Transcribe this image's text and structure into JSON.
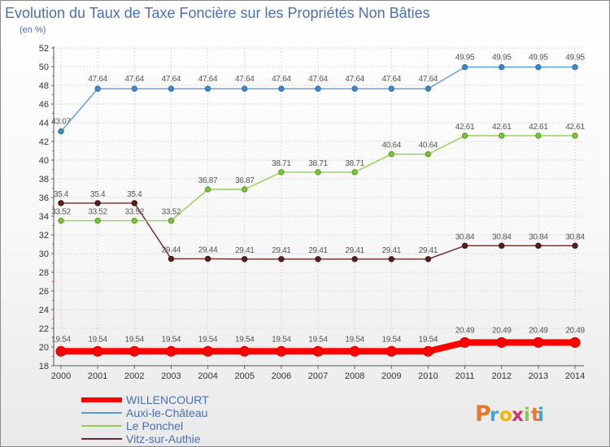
{
  "chart_data": {
    "type": "line",
    "title": "Evolution du Taux de Taxe Foncière sur les Propriétés Non Bâties",
    "ylabel": "(en %)",
    "xlabel": "",
    "categories": [
      "2000",
      "2001",
      "2002",
      "2003",
      "2004",
      "2005",
      "2006",
      "2007",
      "2008",
      "2009",
      "2010",
      "2011",
      "2012",
      "2013",
      "2014"
    ],
    "ylim": [
      18,
      52
    ],
    "yticks": [
      18,
      20,
      22,
      24,
      26,
      28,
      30,
      32,
      34,
      36,
      38,
      40,
      42,
      44,
      46,
      48,
      50,
      52
    ],
    "grid": true,
    "legend_position": "bottom-left",
    "series": [
      {
        "name": "WILLENCOURT",
        "color": "#ff0000",
        "values": [
          19.54,
          19.54,
          19.54,
          19.54,
          19.54,
          19.54,
          19.54,
          19.54,
          19.54,
          19.54,
          19.54,
          20.49,
          20.49,
          20.49,
          20.49
        ],
        "labels": [
          "19.54",
          "19.54",
          "19.54",
          "19.54",
          "19.54",
          "19.54",
          "19.54",
          "19.54",
          "19.54",
          "19.54",
          "19.54",
          "20.49",
          "20.49",
          "20.49",
          "20.49"
        ]
      },
      {
        "name": "Auxi-le-Château",
        "color": "#5b9bd5",
        "values": [
          43.07,
          47.64,
          47.64,
          47.64,
          47.64,
          47.64,
          47.64,
          47.64,
          47.64,
          47.64,
          47.64,
          49.95,
          49.95,
          49.95,
          49.95
        ],
        "labels": [
          "43.07",
          "47.64",
          "47.64",
          "47.64",
          "47.64",
          "47.64",
          "47.64",
          "47.64",
          "47.64",
          "47.64",
          "47.64",
          "49.95",
          "49.95",
          "49.95",
          "49.95"
        ]
      },
      {
        "name": "Le Ponchel",
        "color": "#92d050",
        "values": [
          33.52,
          33.52,
          33.52,
          33.52,
          36.87,
          36.87,
          38.71,
          38.71,
          38.71,
          40.64,
          40.64,
          42.61,
          42.61,
          42.61,
          42.61
        ],
        "labels": [
          "33.52",
          "33.52",
          "33.52",
          "33.52",
          "36.87",
          "36.87",
          "38.71",
          "38.71",
          "38.71",
          "40.64",
          "40.64",
          "42.61",
          "42.61",
          "42.61",
          "42.61"
        ]
      },
      {
        "name": "Vitz-sur-Authie",
        "color": "#6b2a2a",
        "values": [
          35.4,
          35.4,
          35.4,
          29.44,
          29.44,
          29.41,
          29.41,
          29.41,
          29.41,
          29.41,
          29.41,
          30.84,
          30.84,
          30.84,
          30.84
        ],
        "labels": [
          "35.4",
          "35.4",
          "35.4",
          "29.44",
          "29.44",
          "29.41",
          "29.41",
          "29.41",
          "29.41",
          "29.41",
          "29.41",
          "30.84",
          "30.84",
          "30.84",
          "30.84"
        ]
      }
    ]
  },
  "logo": {
    "text": "Proxiti",
    "colors": [
      "#e8762d",
      "#3ea7dc",
      "#f4b400",
      "#d6336c",
      "#8cc63f"
    ]
  }
}
